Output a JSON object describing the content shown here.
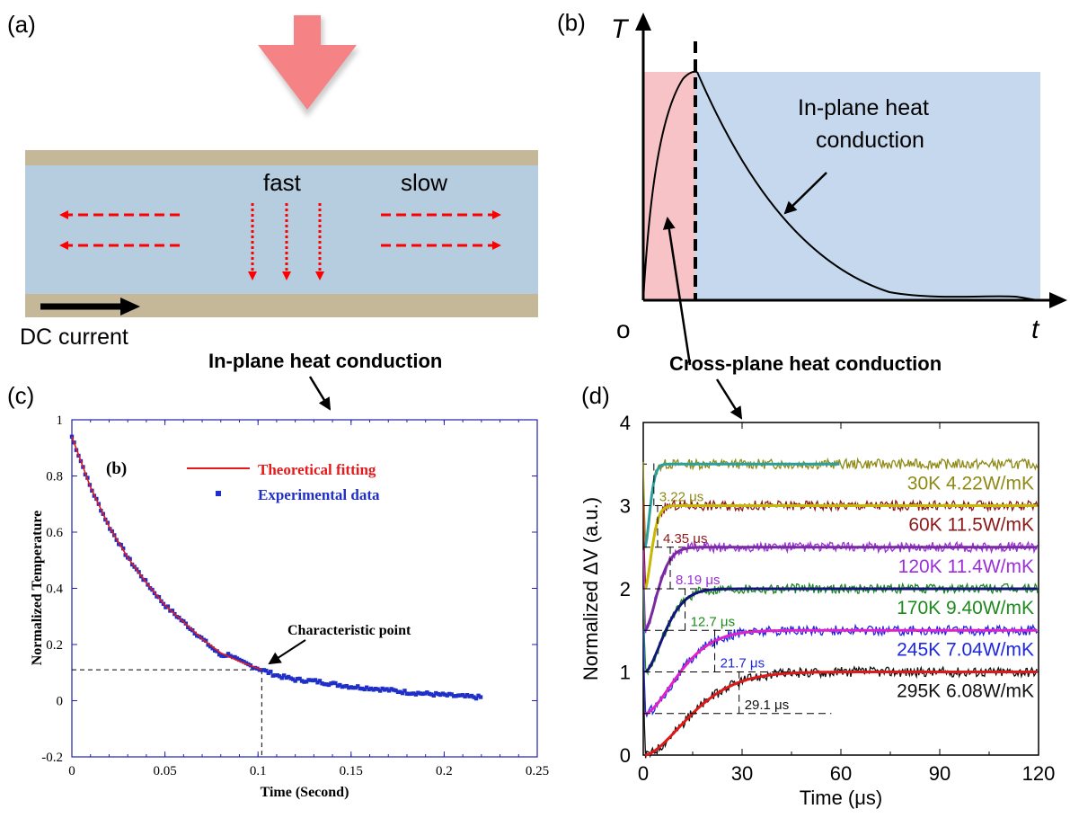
{
  "panel_a": {
    "label": "(a)",
    "fast_label": "fast",
    "slow_label": "slow",
    "current_label": "DC current",
    "caption": "In-plane heat conduction"
  },
  "panel_b": {
    "label": "(b)",
    "y_axis": "T",
    "x_axis": "t",
    "origin": "o",
    "region_text_line1": "In-plane heat",
    "region_text_line2": "conduction",
    "caption": "Cross-plane heat conduction",
    "colors": {
      "cross_plane_region": "#f8c3c7",
      "in_plane_region": "#c5d8ee"
    }
  },
  "chart_data": [
    {
      "panel": "(c)",
      "type": "line",
      "inset_label": "(b)",
      "xlabel": "Time (Second)",
      "ylabel": "Normalized Temperature",
      "xlim": [
        0,
        0.25
      ],
      "ylim": [
        -0.2,
        1
      ],
      "x_ticks": [
        "0",
        "0.05",
        "0.1",
        "0.15",
        "0.2",
        "0.25"
      ],
      "y_ticks": [
        "-0.2",
        "0",
        "0.2",
        "0.4",
        "0.6",
        "0.8",
        "1"
      ],
      "annotation": "Characteristic point",
      "characteristic_point": {
        "x": 0.102,
        "y": 0.11
      },
      "series": [
        {
          "name": "Theoretical fitting",
          "color": "#e41a1c",
          "x": [
            0,
            0.01,
            0.02,
            0.03,
            0.04,
            0.05,
            0.06,
            0.07,
            0.08,
            0.09,
            0.1,
            0.102
          ],
          "y": [
            0.94,
            0.76,
            0.62,
            0.51,
            0.42,
            0.34,
            0.28,
            0.22,
            0.17,
            0.14,
            0.115,
            0.11
          ]
        },
        {
          "name": "Experimental data",
          "color": "#1f2fc8",
          "x": [
            0,
            0.01,
            0.02,
            0.03,
            0.04,
            0.05,
            0.06,
            0.07,
            0.08,
            0.085,
            0.09,
            0.1,
            0.11,
            0.12,
            0.13,
            0.14,
            0.15,
            0.16,
            0.17,
            0.18,
            0.19,
            0.2,
            0.21,
            0.22
          ],
          "y": [
            0.94,
            0.76,
            0.62,
            0.51,
            0.42,
            0.34,
            0.28,
            0.22,
            0.16,
            0.165,
            0.14,
            0.115,
            0.09,
            0.075,
            0.07,
            0.06,
            0.05,
            0.045,
            0.038,
            0.03,
            0.025,
            0.02,
            0.015,
            0.012
          ]
        }
      ]
    },
    {
      "panel": "(d)",
      "type": "line",
      "xlabel": "Time (μs)",
      "ylabel": "Normalized ΔV (a.u.)",
      "xlim": [
        0,
        120
      ],
      "ylim": [
        0,
        4
      ],
      "x_ticks": [
        "0",
        "30",
        "60",
        "90",
        "120"
      ],
      "y_ticks": [
        "0",
        "1",
        "2",
        "3",
        "4"
      ],
      "series": [
        {
          "name": "30K 4.22W/mK",
          "tau": "3.22 μs",
          "tau_value": 3.22,
          "base": 2.5,
          "color": "#8f8a16",
          "fit_color": "#2a9fa0"
        },
        {
          "name": "60K 11.5W/mK",
          "tau": "4.35 μs",
          "tau_value": 4.35,
          "base": 2.0,
          "color": "#8b1a1a",
          "fit_color": "#c8b800"
        },
        {
          "name": "120K 11.4W/mK",
          "tau": "8.19 μs",
          "tau_value": 8.19,
          "base": 1.5,
          "color": "#9b30d9",
          "fit_color": "#7a2aa0"
        },
        {
          "name": "170K 9.40W/mK",
          "tau": "12.7 μs",
          "tau_value": 12.7,
          "base": 1.0,
          "color": "#1e8a1e",
          "fit_color": "#12157a"
        },
        {
          "name": "245K 7.04W/mK",
          "tau": "21.7 μs",
          "tau_value": 21.7,
          "base": 0.5,
          "color": "#1c28e0",
          "fit_color": "#e020c8"
        },
        {
          "name": "295K 6.08W/mK",
          "tau": "29.1 μs",
          "tau_value": 29.1,
          "base": 0.0,
          "color": "#111111",
          "fit_color": "#e01818"
        }
      ]
    }
  ]
}
